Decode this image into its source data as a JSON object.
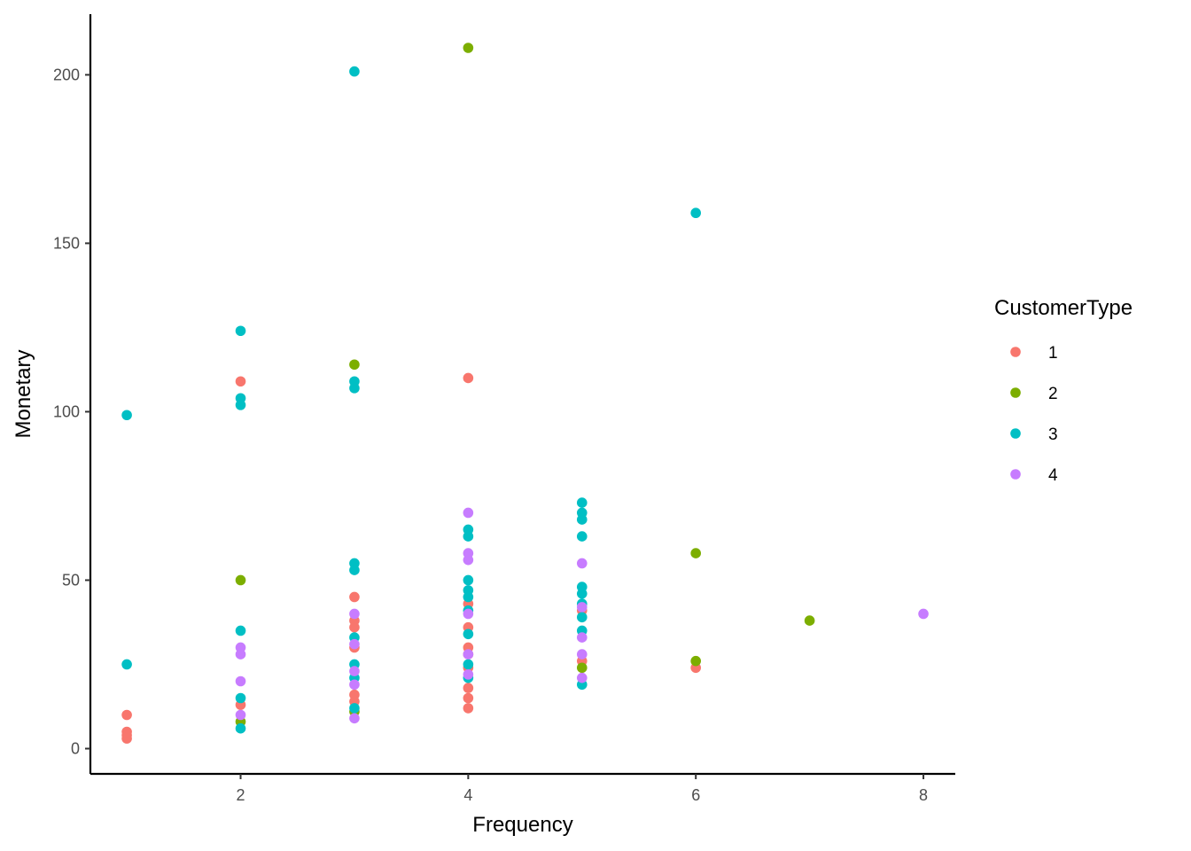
{
  "chart_data": {
    "type": "scatter",
    "title": "",
    "xlabel": "Frequency",
    "ylabel": "Monetary",
    "xlim": [
      0.68,
      8.28
    ],
    "ylim": [
      -7.5,
      218
    ],
    "xticks": [
      2,
      4,
      6,
      8
    ],
    "yticks": [
      0,
      50,
      100,
      150,
      200
    ],
    "grid": false,
    "legend": {
      "title": "CustomerType",
      "position": "right"
    },
    "series": [
      {
        "name": "1",
        "color": "#F8766D",
        "points": [
          [
            1,
            3
          ],
          [
            1,
            4
          ],
          [
            1,
            5
          ],
          [
            1,
            10
          ],
          [
            2,
            109
          ],
          [
            2,
            13
          ],
          [
            3,
            45
          ],
          [
            3,
            38
          ],
          [
            3,
            36
          ],
          [
            3,
            30
          ],
          [
            3,
            16
          ],
          [
            3,
            14
          ],
          [
            4,
            110
          ],
          [
            4,
            43
          ],
          [
            4,
            36
          ],
          [
            4,
            30
          ],
          [
            4,
            28
          ],
          [
            4,
            24
          ],
          [
            4,
            18
          ],
          [
            4,
            15
          ],
          [
            4,
            12
          ],
          [
            5,
            41
          ],
          [
            5,
            26
          ],
          [
            6,
            24
          ]
        ]
      },
      {
        "name": "2",
        "color": "#7CAE00",
        "points": [
          [
            2,
            50
          ],
          [
            2,
            8
          ],
          [
            3,
            114
          ],
          [
            3,
            11
          ],
          [
            4,
            208
          ],
          [
            5,
            24
          ],
          [
            6,
            58
          ],
          [
            6,
            26
          ],
          [
            7,
            38
          ]
        ]
      },
      {
        "name": "3",
        "color": "#00BFC4",
        "points": [
          [
            1,
            99
          ],
          [
            1,
            25
          ],
          [
            2,
            124
          ],
          [
            2,
            104
          ],
          [
            2,
            102
          ],
          [
            2,
            35
          ],
          [
            2,
            15
          ],
          [
            2,
            6
          ],
          [
            3,
            201
          ],
          [
            3,
            109
          ],
          [
            3,
            107
          ],
          [
            3,
            55
          ],
          [
            3,
            53
          ],
          [
            3,
            33
          ],
          [
            3,
            25
          ],
          [
            3,
            21
          ],
          [
            3,
            12
          ],
          [
            4,
            65
          ],
          [
            4,
            63
          ],
          [
            4,
            50
          ],
          [
            4,
            47
          ],
          [
            4,
            45
          ],
          [
            4,
            41
          ],
          [
            4,
            34
          ],
          [
            4,
            25
          ],
          [
            4,
            21
          ],
          [
            5,
            73
          ],
          [
            5,
            70
          ],
          [
            5,
            68
          ],
          [
            5,
            63
          ],
          [
            5,
            48
          ],
          [
            5,
            46
          ],
          [
            5,
            43
          ],
          [
            5,
            39
          ],
          [
            5,
            35
          ],
          [
            5,
            19
          ],
          [
            6,
            159
          ]
        ]
      },
      {
        "name": "4",
        "color": "#C77CFF",
        "points": [
          [
            2,
            30
          ],
          [
            2,
            28
          ],
          [
            2,
            20
          ],
          [
            2,
            10
          ],
          [
            3,
            40
          ],
          [
            3,
            31
          ],
          [
            3,
            23
          ],
          [
            3,
            19
          ],
          [
            3,
            9
          ],
          [
            4,
            70
          ],
          [
            4,
            58
          ],
          [
            4,
            56
          ],
          [
            4,
            40
          ],
          [
            4,
            28
          ],
          [
            4,
            22
          ],
          [
            5,
            55
          ],
          [
            5,
            42
          ],
          [
            5,
            33
          ],
          [
            5,
            28
          ],
          [
            5,
            21
          ],
          [
            8,
            40
          ]
        ]
      }
    ]
  }
}
